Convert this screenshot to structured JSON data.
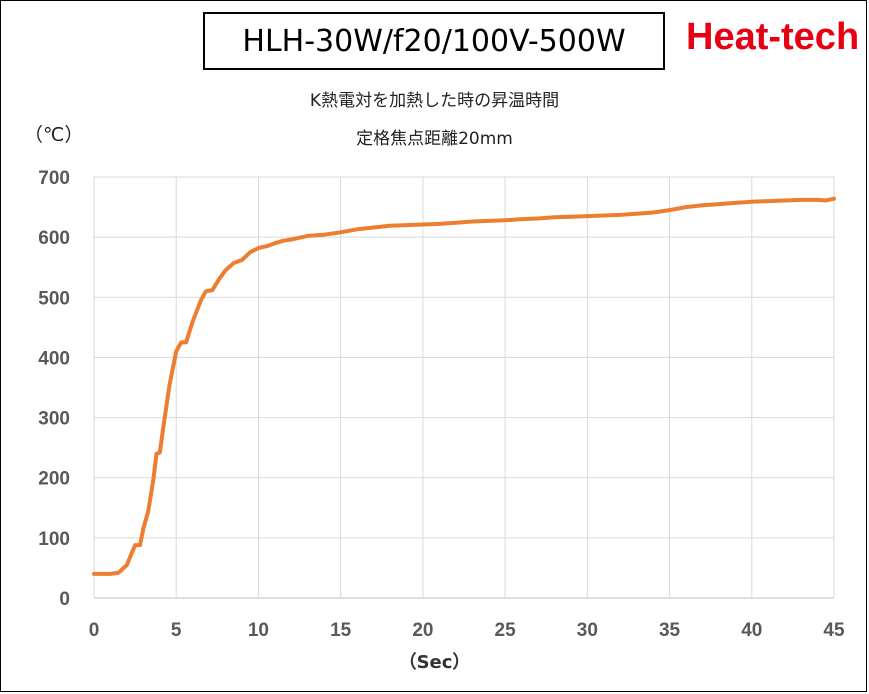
{
  "header": {
    "model": "HLH-30W/f20/100V-500W",
    "brand": "Heat-tech",
    "subtitle_1": "K熱電対を加熱した時の昇温時間",
    "subtitle_2": "定格焦点距離20mm"
  },
  "chart_data": {
    "type": "line",
    "ylabel": "（℃）",
    "xlabel": "（Sec）",
    "xlim": [
      0,
      45
    ],
    "ylim": [
      0,
      700
    ],
    "x_ticks": [
      0,
      5,
      10,
      15,
      20,
      25,
      30,
      35,
      40,
      45
    ],
    "y_ticks": [
      0,
      100,
      200,
      300,
      400,
      500,
      600,
      700
    ],
    "grid": true,
    "line_color": "#ed7d31",
    "series": [
      {
        "name": "",
        "points": [
          [
            0,
            40
          ],
          [
            1,
            40
          ],
          [
            1.5,
            42
          ],
          [
            2,
            55
          ],
          [
            2.3,
            75
          ],
          [
            2.5,
            88
          ],
          [
            2.8,
            88
          ],
          [
            3,
            115
          ],
          [
            3.3,
            145
          ],
          [
            3.6,
            195
          ],
          [
            3.8,
            240
          ],
          [
            4,
            242
          ],
          [
            4.3,
            300
          ],
          [
            4.6,
            355
          ],
          [
            5,
            410
          ],
          [
            5.3,
            425
          ],
          [
            5.6,
            425
          ],
          [
            6,
            460
          ],
          [
            6.5,
            495
          ],
          [
            6.8,
            510
          ],
          [
            7.2,
            512
          ],
          [
            7.6,
            530
          ],
          [
            8,
            545
          ],
          [
            8.5,
            557
          ],
          [
            9,
            562
          ],
          [
            9.5,
            575
          ],
          [
            10,
            582
          ],
          [
            10.5,
            585
          ],
          [
            11,
            590
          ],
          [
            11.5,
            594
          ],
          [
            12,
            596
          ],
          [
            12.5,
            599
          ],
          [
            13,
            602
          ],
          [
            14,
            604
          ],
          [
            15,
            608
          ],
          [
            16,
            613
          ],
          [
            17,
            616
          ],
          [
            18,
            619
          ],
          [
            19,
            620
          ],
          [
            20,
            621
          ],
          [
            21,
            622
          ],
          [
            22,
            624
          ],
          [
            23,
            626
          ],
          [
            24,
            627
          ],
          [
            25,
            628
          ],
          [
            26,
            630
          ],
          [
            27,
            631
          ],
          [
            28,
            633
          ],
          [
            29,
            634
          ],
          [
            30,
            635
          ],
          [
            31,
            636
          ],
          [
            32,
            637
          ],
          [
            33,
            639
          ],
          [
            34,
            641
          ],
          [
            35,
            645
          ],
          [
            36,
            650
          ],
          [
            37,
            653
          ],
          [
            38,
            655
          ],
          [
            39,
            657
          ],
          [
            40,
            659
          ],
          [
            41,
            660
          ],
          [
            42,
            661
          ],
          [
            43,
            662
          ],
          [
            44,
            662
          ],
          [
            44.5,
            661
          ],
          [
            45,
            664
          ]
        ]
      }
    ]
  }
}
